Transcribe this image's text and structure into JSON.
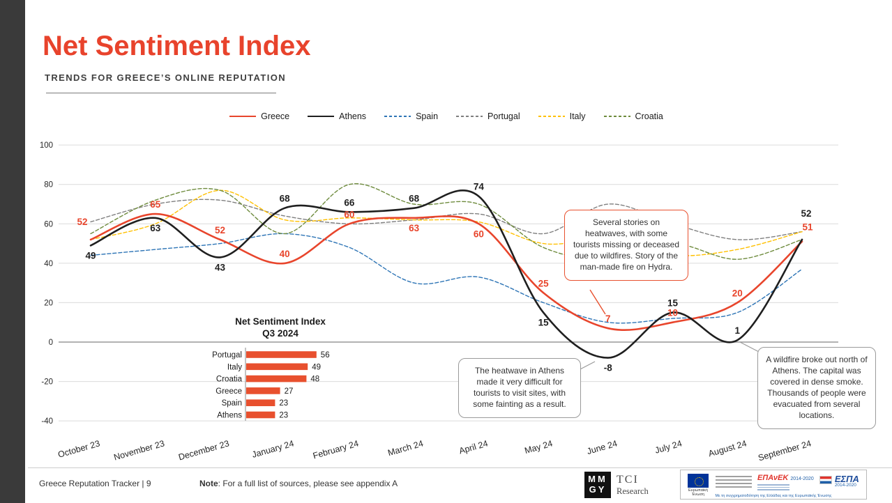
{
  "page": {
    "title": "Net Sentiment Index",
    "subtitle": "TRENDS FOR GREECE’S ONLINE REPUTATION"
  },
  "chart_data": {
    "type": "line",
    "title": "Net Sentiment Index",
    "categories": [
      "October 23",
      "November 23",
      "December 23",
      "January 24",
      "February 24",
      "March 24",
      "April 24",
      "May 24",
      "June 24",
      "July 24",
      "August 24",
      "September 24"
    ],
    "ylim": [
      -40,
      100
    ],
    "ytick_step": 20,
    "grid": true,
    "legend_position": "top",
    "series": [
      {
        "name": "Greece",
        "color": "#e8452c",
        "style": "solid",
        "labeled": true,
        "values": [
          52,
          65,
          52,
          40,
          60,
          63,
          60,
          25,
          7,
          10,
          20,
          51
        ]
      },
      {
        "name": "Athens",
        "color": "#1f1f1f",
        "style": "solid",
        "labeled": true,
        "values": [
          49,
          63,
          43,
          68,
          66,
          68,
          74,
          15,
          -8,
          15,
          1,
          52
        ]
      },
      {
        "name": "Spain",
        "color": "#2e75b6",
        "style": "dashed",
        "labeled": false,
        "values": [
          44,
          47,
          50,
          55,
          48,
          30,
          33,
          20,
          10,
          12,
          15,
          37
        ]
      },
      {
        "name": "Portugal",
        "color": "#7f7f7f",
        "style": "dashed",
        "labeled": false,
        "values": [
          61,
          70,
          72,
          64,
          60,
          62,
          65,
          55,
          70,
          60,
          52,
          56
        ]
      },
      {
        "name": "Italy",
        "color": "#ffc000",
        "style": "dashed",
        "labeled": false,
        "values": [
          52,
          60,
          77,
          62,
          63,
          62,
          61,
          50,
          52,
          44,
          47,
          56
        ]
      },
      {
        "name": "Croatia",
        "color": "#6e8b3d",
        "style": "dashed",
        "labeled": false,
        "values": [
          55,
          72,
          77,
          55,
          80,
          70,
          70,
          48,
          42,
          50,
          42,
          52
        ]
      }
    ],
    "inset": {
      "type": "bar",
      "title_line1": "Net Sentiment Index",
      "title_line2": "Q3 2024",
      "categories": [
        "Portugal",
        "Italy",
        "Croatia",
        "Greece",
        "Spain",
        "Athens"
      ],
      "values": [
        56,
        49,
        48,
        27,
        23,
        23
      ],
      "bar_color": "#e8502e"
    },
    "annotations": [
      {
        "style": "orange",
        "text": "Several stories on heatwaves, with some tourists missing or deceased due to wildfires. Story of the man-made fire on Hydra."
      },
      {
        "style": "gray",
        "text": "The heatwave in Athens made it very difficult for tourists to visit sites, with some fainting as a result."
      },
      {
        "style": "gray",
        "text": "A wildfire broke out north of Athens. The capital was covered in dense smoke. Thousands of people were evacuated from several locations."
      }
    ]
  },
  "footer": {
    "left": "Greece Reputation Tracker  |  9",
    "note_label": "Note",
    "note_rest": ": For a full list of sources, please see appendix A",
    "mmgy_top": "MM",
    "mmgy_bottom": "GY",
    "tci": "TCI",
    "tci_sub": "Research",
    "eu": {
      "flag_caption": "Ευρωπαϊκή Ένωση",
      "epanek": "ΕΠΑνΕΚ",
      "epanek_years": "2014-2020",
      "espa": "ΕΣΠΑ",
      "espa_years": "2014-2020",
      "cofinance": "Με τη συγχρηματοδότηση της Ελλάδας και της Ευρωπαϊκής Ένωσης"
    }
  }
}
